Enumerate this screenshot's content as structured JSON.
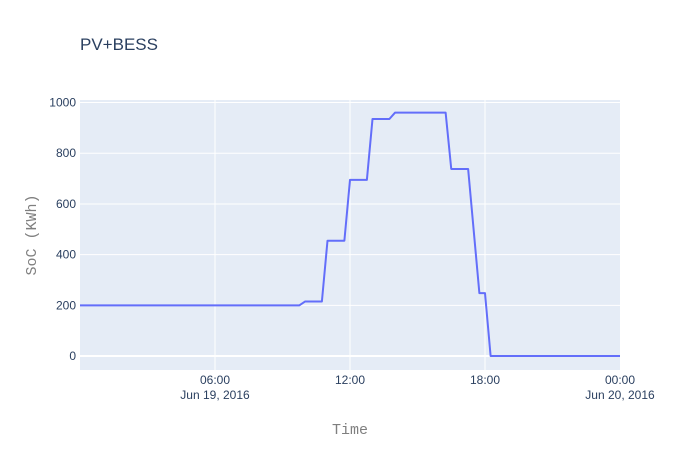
{
  "chart_data": {
    "type": "line",
    "title": "PV+BESS",
    "xlabel": "Time",
    "ylabel": "SoC (KWh)",
    "xlim": [
      "2016-06-19 00:00",
      "2016-06-20 00:00"
    ],
    "ylim": [
      -55,
      1010
    ],
    "grid": true,
    "legend": "none",
    "x_ticks": [
      {
        "value": "2016-06-19 06:00",
        "label": "06:00",
        "sublabel": "Jun 19, 2016"
      },
      {
        "value": "2016-06-19 12:00",
        "label": "12:00",
        "sublabel": ""
      },
      {
        "value": "2016-06-19 18:00",
        "label": "18:00",
        "sublabel": ""
      },
      {
        "value": "2016-06-20 00:00",
        "label": "00:00",
        "sublabel": "Jun 20, 2016"
      }
    ],
    "y_ticks": [
      0,
      200,
      400,
      600,
      800,
      1000
    ],
    "series": [
      {
        "color": "#636efa",
        "points": [
          {
            "x": "2016-06-19 00:00",
            "y": 200
          },
          {
            "x": "2016-06-19 09:45",
            "y": 200
          },
          {
            "x": "2016-06-19 10:00",
            "y": 215
          },
          {
            "x": "2016-06-19 10:45",
            "y": 215
          },
          {
            "x": "2016-06-19 11:00",
            "y": 455
          },
          {
            "x": "2016-06-19 11:45",
            "y": 455
          },
          {
            "x": "2016-06-19 12:00",
            "y": 695
          },
          {
            "x": "2016-06-19 12:45",
            "y": 695
          },
          {
            "x": "2016-06-19 13:00",
            "y": 935
          },
          {
            "x": "2016-06-19 13:45",
            "y": 935
          },
          {
            "x": "2016-06-19 14:00",
            "y": 960
          },
          {
            "x": "2016-06-19 16:15",
            "y": 960
          },
          {
            "x": "2016-06-19 16:30",
            "y": 738
          },
          {
            "x": "2016-06-19 17:15",
            "y": 738
          },
          {
            "x": "2016-06-19 17:45",
            "y": 248
          },
          {
            "x": "2016-06-19 17:60",
            "y": 248
          },
          {
            "x": "2016-06-19 18:15",
            "y": 0
          },
          {
            "x": "2016-06-20 00:00",
            "y": 0
          }
        ]
      }
    ]
  }
}
